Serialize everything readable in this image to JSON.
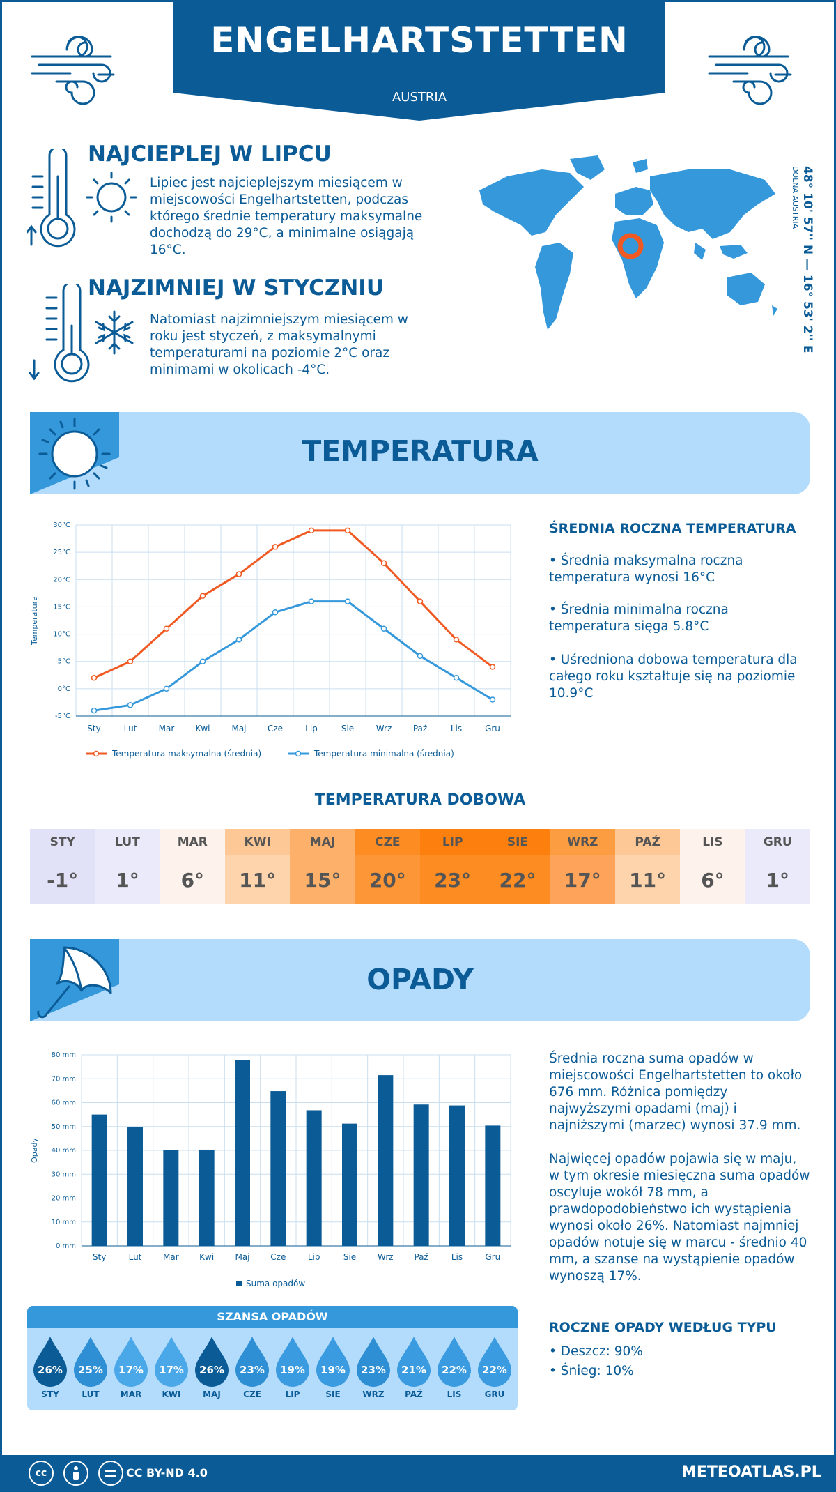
{
  "header": {
    "title": "ENGELHARTSTETTEN",
    "country": "AUSTRIA"
  },
  "warmest": {
    "title": "NAJCIEPLEJ W LIPCU",
    "text": "Lipiec jest najcieplejszym miesiącem w miejscowości Engelhartstetten, podczas którego średnie temperatury maksymalne dochodzą do 29°C, a minimalne osiągają 16°C."
  },
  "coldest": {
    "title": "NAJZIMNIEJ W STYCZNIU",
    "text": "Natomiast najzimniejszym miesiącem w roku jest styczeń, z maksymalnymi temperaturami na poziomie 2°C oraz minimami w okolicach -4°C."
  },
  "location": {
    "coords": "48° 10' 57'' N — 16° 53' 2'' E",
    "region": "DOLNA AUSTRIA"
  },
  "temperature_section": {
    "title": "TEMPERATURA",
    "stats_title": "ŚREDNIA ROCZNA TEMPERATURA",
    "stats": [
      "• Średnia maksymalna roczna temperatura wynosi 16°C",
      "• Średnia minimalna roczna temperatura sięga 5.8°C",
      "• Uśredniona dobowa temperatura dla całego roku kształtuje się na poziomie 10.9°C"
    ]
  },
  "daily": {
    "title": "TEMPERATURA DOBOWA",
    "months": [
      "STY",
      "LUT",
      "MAR",
      "KWI",
      "MAJ",
      "CZE",
      "LIP",
      "SIE",
      "WRZ",
      "PAŹ",
      "LIS",
      "GRU"
    ],
    "values": [
      "-1°",
      "1°",
      "6°",
      "11°",
      "15°",
      "20°",
      "23°",
      "22°",
      "17°",
      "11°",
      "6°",
      "1°"
    ],
    "head_colors": [
      "#e1e1f8",
      "#eaeafb",
      "#fdf3ec",
      "#fdc896",
      "#fdb06a",
      "#fd8c22",
      "#fd7f0e",
      "#fd7f0e",
      "#fd9d41",
      "#fdc896",
      "#fdf3ec",
      "#eaeafb"
    ],
    "val_colors": [
      "#e1e1f8",
      "#eaeafb",
      "#fdf3ec",
      "#fdd4ac",
      "#fdb06a",
      "#fd9637",
      "#fd8c22",
      "#fd8c22",
      "#fda35a",
      "#fdd4ac",
      "#fdf3ec",
      "#eaeafb"
    ]
  },
  "precip_section": {
    "title": "OPADY",
    "text1": "Średnia roczna suma opadów w miejscowości Engelhartstetten to około 676 mm. Różnica pomiędzy najwyższymi opadami (maj) i najniższymi (marzec) wynosi 37.9 mm.",
    "text2": "Najwięcej opadów pojawia się w maju, w tym okresie miesięczna suma opadów oscyluje wokół 78 mm, a prawdopodobieństwo ich wystąpienia wynosi około 26%. Natomiast najmniej opadów notuje się w marcu - średnio 40 mm, a szanse na wystąpienie opadów wynoszą 17%.",
    "type_title": "ROCZNE OPADY WEDŁUG TYPU",
    "types": [
      "• Deszcz: 90%",
      "• Śnieg: 10%"
    ]
  },
  "chance": {
    "title": "SZANSA OPADÓW",
    "months": [
      "STY",
      "LUT",
      "MAR",
      "KWI",
      "MAJ",
      "CZE",
      "LIP",
      "SIE",
      "WRZ",
      "PAŹ",
      "LIS",
      "GRU"
    ],
    "values": [
      "26%",
      "25%",
      "17%",
      "17%",
      "26%",
      "23%",
      "19%",
      "19%",
      "23%",
      "21%",
      "22%",
      "22%"
    ],
    "colors": [
      "#0a5b96",
      "#2f8fd4",
      "#4aa8e8",
      "#4aa8e8",
      "#0a5b96",
      "#2f8fd4",
      "#3a9be0",
      "#3a9be0",
      "#2f8fd4",
      "#3a9be0",
      "#3a9be0",
      "#3a9be0"
    ]
  },
  "footer": {
    "license": "CC BY-ND 4.0",
    "brand": "METEOATLAS.PL"
  },
  "chart_data": [
    {
      "type": "line",
      "categories": [
        "Sty",
        "Lut",
        "Mar",
        "Kwi",
        "Maj",
        "Cze",
        "Lip",
        "Sie",
        "Wrz",
        "Paź",
        "Lis",
        "Gru"
      ],
      "series": [
        {
          "name": "Temperatura maksymalna (średnia)",
          "values": [
            2,
            5,
            11,
            17,
            21,
            26,
            29,
            29,
            23,
            16,
            9,
            4
          ],
          "color": "#f05a22"
        },
        {
          "name": "Temperatura minimalna (średnia)",
          "values": [
            -4,
            -3,
            0,
            5,
            9,
            14,
            16,
            16,
            11,
            6,
            2,
            -2
          ],
          "color": "#3498db"
        }
      ],
      "ylabel": "Temperatura",
      "ylim": [
        -5,
        30
      ],
      "yticks": [
        -5,
        0,
        5,
        10,
        15,
        20,
        25,
        30
      ],
      "ytick_labels": [
        "-5°C",
        "0°C",
        "5°C",
        "10°C",
        "15°C",
        "20°C",
        "25°C",
        "30°C"
      ],
      "grid": true,
      "legend": "bottom"
    },
    {
      "type": "bar",
      "categories": [
        "Sty",
        "Lut",
        "Mar",
        "Kwi",
        "Maj",
        "Cze",
        "Lip",
        "Sie",
        "Wrz",
        "Paź",
        "Lis",
        "Gru"
      ],
      "series": [
        {
          "name": "Suma opadów",
          "values": [
            55,
            49.8,
            40,
            40.3,
            77.9,
            64.8,
            56.8,
            51.2,
            71.5,
            59.2,
            58.8,
            50.4
          ],
          "color": "#0a5b96"
        }
      ],
      "ylabel": "Opady",
      "ylim": [
        0,
        80
      ],
      "yticks": [
        0,
        10,
        20,
        30,
        40,
        50,
        60,
        70,
        80
      ],
      "ytick_labels": [
        "0 mm",
        "10 mm",
        "20 mm",
        "30 mm",
        "40 mm",
        "50 mm",
        "60 mm",
        "70 mm",
        "80 mm"
      ],
      "grid": true,
      "legend": "bottom"
    }
  ]
}
